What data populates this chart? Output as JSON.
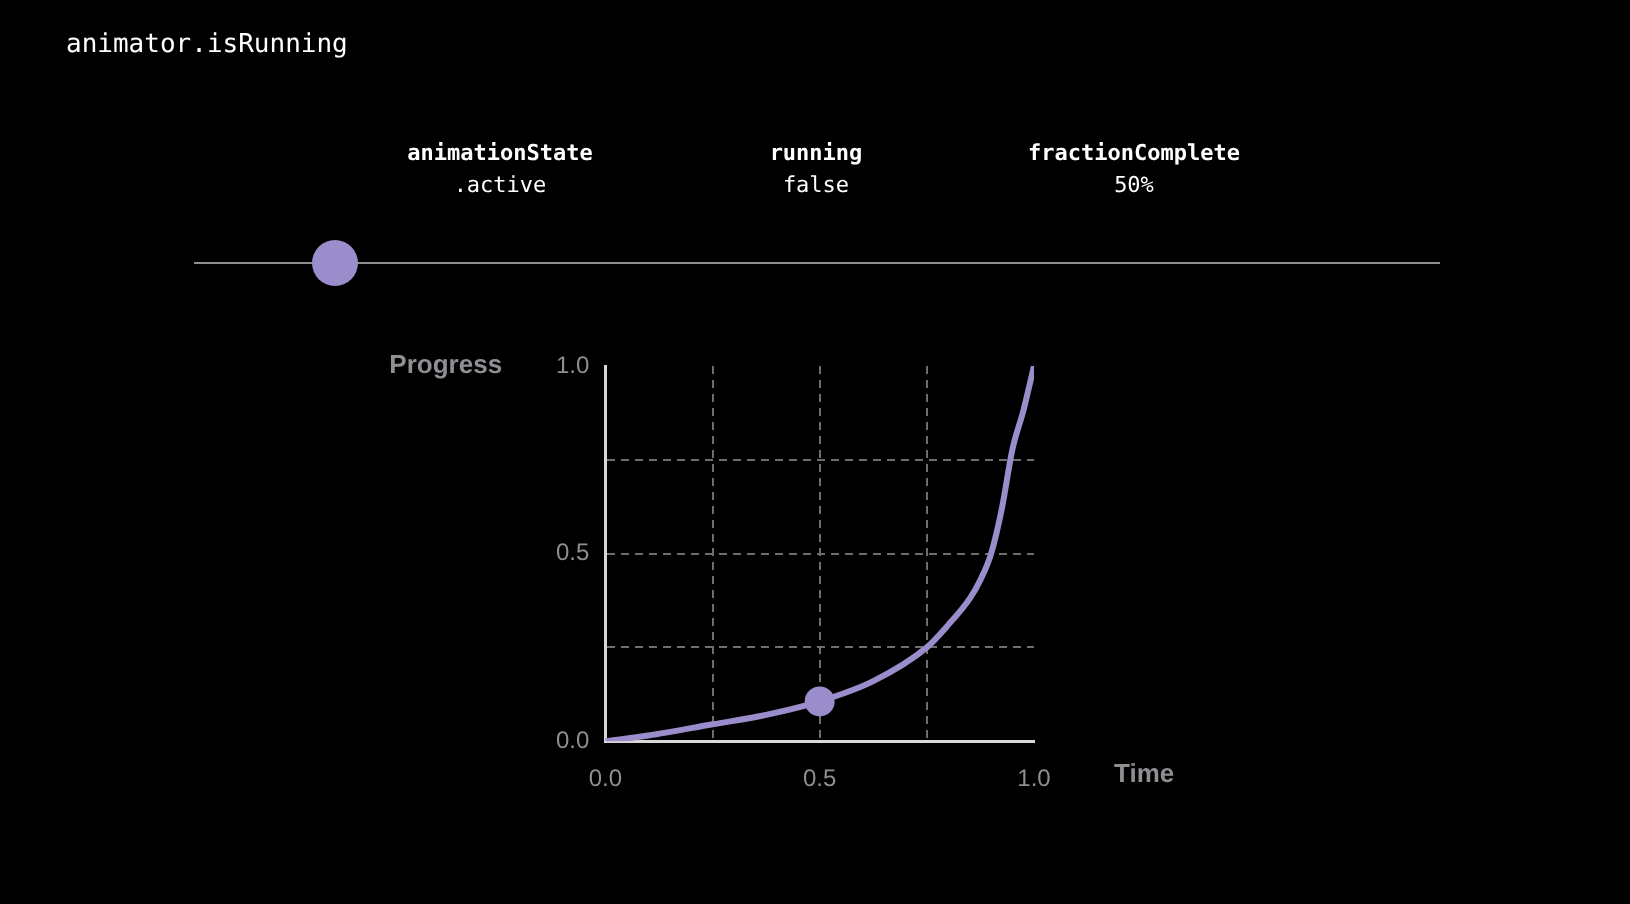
{
  "chart_data": {
    "type": "line",
    "title": "animator.isRunning",
    "annotations": [
      "animationState",
      ".active",
      "running",
      "false",
      "fractionComplete",
      "50%"
    ],
    "xlabel": "Time",
    "ylabel": "Progress",
    "xlim": [
      0,
      1
    ],
    "ylim": [
      0,
      1
    ],
    "xticks": [
      {
        "value": 0,
        "label": "0.0"
      },
      {
        "value": 0.25,
        "label": null
      },
      0.5,
      {
        "value": 0.75,
        "label": null
      },
      {
        "value": 1,
        "label": "1.0"
      }
    ],
    "yticks": [
      {
        "value": 0,
        "label": "0.0"
      },
      {
        "value": 0.25,
        "label": null
      },
      0.5,
      {
        "value": 0.75,
        "label": null
      },
      {
        "value": 1,
        "label": "1.0"
      }
    ],
    "grid": true,
    "legend": false,
    "series": [
      {
        "type": "line",
        "color": "#9b8dcb",
        "marker": "none",
        "x": [
          0,
          0.1,
          0.25,
          0.375,
          0.5,
          0.625,
          0.75,
          0.8,
          0.85,
          0.875,
          0.9,
          0.925,
          0.95,
          0.975,
          1
        ],
        "values": [
          0,
          0.015,
          0.045,
          0.07,
          0.106,
          0.16,
          0.25,
          0.31,
          0.38,
          0.43,
          0.5,
          0.62,
          0.78,
          0.88,
          1
        ]
      },
      {
        "type": "scatter",
        "color": "#9b8dcb",
        "marker": "circle",
        "x": [
          0.5
        ],
        "values": [
          0.106
        ]
      }
    ]
  }
}
